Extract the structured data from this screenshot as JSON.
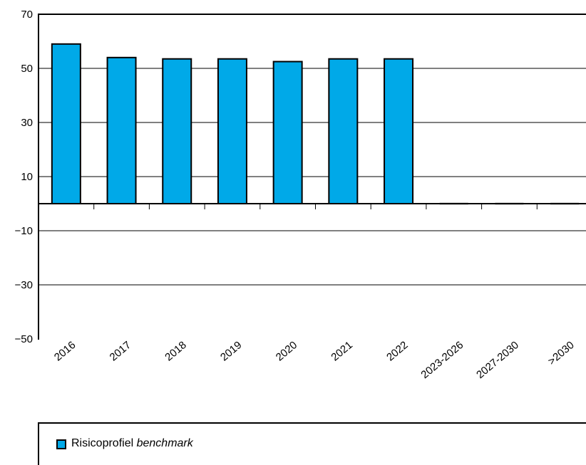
{
  "chart_data": {
    "type": "bar",
    "categories": [
      "2016",
      "2017",
      "2018",
      "2019",
      "2020",
      "2021",
      "2022",
      "2023-2026",
      "2027-2030",
      ">2030"
    ],
    "series": [
      {
        "name": "Risicoprofiel benchmark",
        "values": [
          59,
          54,
          53.5,
          53.5,
          52.5,
          53.5,
          53.5,
          0,
          0,
          0
        ]
      }
    ],
    "ylim": [
      -50,
      70
    ],
    "yticks": [
      -50,
      -30,
      -10,
      10,
      30,
      50,
      70
    ],
    "ytick_labels": [
      "−50",
      "−30",
      "−10",
      "10",
      "30",
      "50",
      "70"
    ],
    "grid": true,
    "bar_color": "#00a9e8",
    "legend": {
      "placement": "bottom",
      "label_plain": "Risicoprofiel ",
      "label_italic": "benchmark"
    }
  }
}
